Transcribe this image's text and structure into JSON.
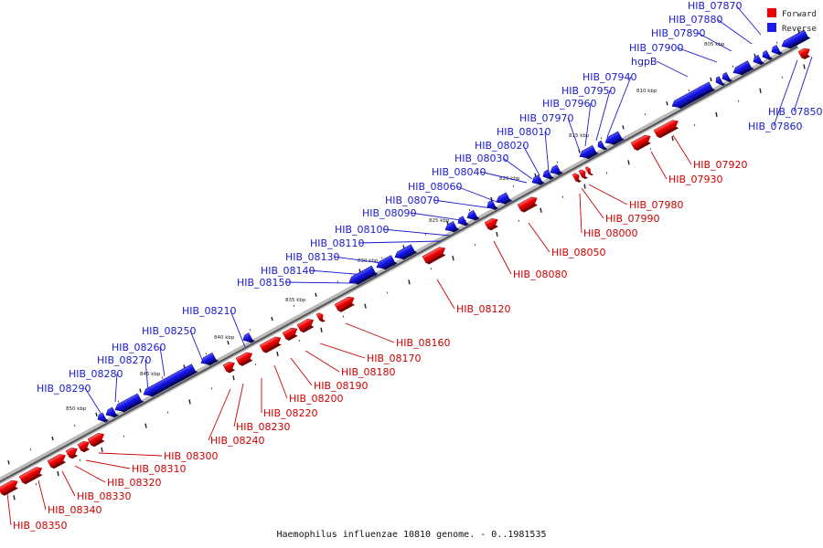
{
  "caption": "Haemophilus influenzae 10810 genome. - 0..1981535",
  "legend": {
    "forward_label": "Forward",
    "reverse_label": "Reverse",
    "forward_color": "#ee0000",
    "reverse_color": "#1a1aee"
  },
  "kbp_labels": [
    "805 kbp",
    "810 kbp",
    "815 kbp",
    "820 kbp",
    "825 kbp",
    "830 kbp",
    "835 kbp",
    "840 kbp",
    "845 kbp",
    "850 kbp"
  ],
  "genes_reverse": [
    "HIB_07850",
    "HIB_07860",
    "HIB_07870",
    "HIB_07880",
    "HIB_07890",
    "HIB_07900",
    "hgpB",
    "HIB_07940",
    "HIB_07950",
    "HIB_07960",
    "HIB_07970",
    "HIB_08010",
    "HIB_08020",
    "HIB_08030",
    "HIB_08040",
    "HIB_08060",
    "HIB_08070",
    "HIB_08090",
    "HIB_08100",
    "HIB_08110",
    "HIB_08130",
    "HIB_08140",
    "HIB_08150",
    "HIB_08210",
    "HIB_08250",
    "HIB_08260",
    "HIB_08270",
    "HIB_08280",
    "HIB_08290"
  ],
  "genes_forward": [
    "HIB_07920",
    "HIB_07930",
    "HIB_07980",
    "HIB_07990",
    "HIB_08000",
    "HIB_08050",
    "HIB_08080",
    "HIB_08120",
    "HIB_08160",
    "HIB_08170",
    "HIB_08180",
    "HIB_08190",
    "HIB_08200",
    "HIB_08220",
    "HIB_08230",
    "HIB_08240",
    "HIB_08300",
    "HIB_08310",
    "HIB_08320",
    "HIB_08330",
    "HIB_08340",
    "HIB_08350"
  ]
}
